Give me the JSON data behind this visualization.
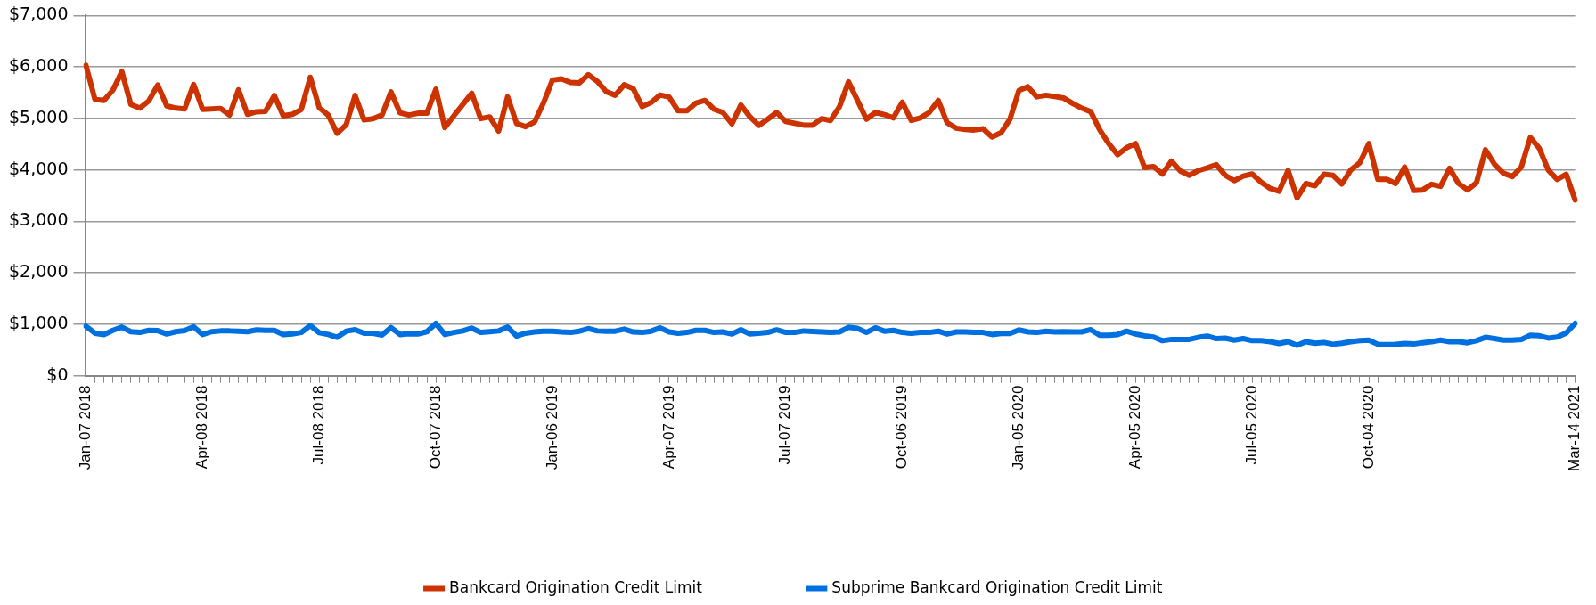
{
  "chart_data": {
    "type": "line",
    "categories": [
      "Jan-07 2018",
      null,
      null,
      null,
      null,
      null,
      null,
      null,
      null,
      null,
      null,
      null,
      null,
      "Apr-08 2018",
      null,
      null,
      null,
      null,
      null,
      null,
      null,
      null,
      null,
      null,
      null,
      null,
      "Jul-08 2018",
      null,
      null,
      null,
      null,
      null,
      null,
      null,
      null,
      null,
      null,
      null,
      null,
      "Oct-07 2018",
      null,
      null,
      null,
      null,
      null,
      null,
      null,
      null,
      null,
      null,
      null,
      null,
      "Jan-06 2019",
      null,
      null,
      null,
      null,
      null,
      null,
      null,
      null,
      null,
      null,
      null,
      null,
      "Apr-07 2019",
      null,
      null,
      null,
      null,
      null,
      null,
      null,
      null,
      null,
      null,
      null,
      null,
      "Jul-07 2019",
      null,
      null,
      null,
      null,
      null,
      null,
      null,
      null,
      null,
      null,
      null,
      null,
      "Oct-06 2019",
      null,
      null,
      null,
      null,
      null,
      null,
      null,
      null,
      null,
      null,
      null,
      null,
      "Jan-05 2020",
      null,
      null,
      null,
      null,
      null,
      null,
      null,
      null,
      null,
      null,
      null,
      null,
      "Apr-05 2020",
      null,
      null,
      null,
      null,
      null,
      null,
      null,
      null,
      null,
      null,
      null,
      null,
      "Jul-05 2020",
      null,
      null,
      null,
      null,
      null,
      null,
      null,
      null,
      null,
      null,
      null,
      null,
      "Oct-04 2020",
      null,
      null,
      null,
      null,
      null,
      null,
      null,
      null,
      null,
      null,
      null,
      null,
      null,
      null,
      null,
      null,
      null,
      null,
      null,
      null,
      null,
      null,
      "Mar-14 2021"
    ],
    "series": [
      {
        "name": "Bankcard Origination Credit Limit",
        "color": "#cc3300",
        "values": [
          6030,
          5370,
          5350,
          5550,
          5910,
          5270,
          5200,
          5340,
          5650,
          5245,
          5200,
          5185,
          5660,
          5175,
          5185,
          5195,
          5065,
          5555,
          5080,
          5130,
          5135,
          5445,
          5050,
          5080,
          5175,
          5800,
          5210,
          5065,
          4710,
          4875,
          5445,
          4970,
          4995,
          5065,
          5515,
          5110,
          5065,
          5100,
          5100,
          5570,
          4820,
          5050,
          5270,
          5490,
          4995,
          5030,
          4755,
          5420,
          4900,
          4840,
          4930,
          5300,
          5745,
          5770,
          5700,
          5690,
          5850,
          5720,
          5520,
          5450,
          5655,
          5580,
          5230,
          5310,
          5455,
          5415,
          5150,
          5150,
          5300,
          5350,
          5180,
          5115,
          4895,
          5260,
          5035,
          4865,
          4985,
          5115,
          4940,
          4905,
          4870,
          4870,
          4995,
          4960,
          5230,
          5710,
          5350,
          4985,
          5115,
          5075,
          5010,
          5315,
          4960,
          5010,
          5115,
          5350,
          4915,
          4810,
          4785,
          4775,
          4800,
          4640,
          4720,
          4985,
          5545,
          5615,
          5420,
          5450,
          5425,
          5395,
          5290,
          5200,
          5130,
          4780,
          4510,
          4295,
          4430,
          4510,
          4045,
          4065,
          3920,
          4170,
          3975,
          3895,
          3985,
          4040,
          4100,
          3895,
          3790,
          3880,
          3920,
          3760,
          3640,
          3585,
          3990,
          3455,
          3735,
          3690,
          3915,
          3895,
          3725,
          4000,
          4140,
          4510,
          3815,
          3815,
          3735,
          4055,
          3600,
          3610,
          3720,
          3680,
          4030,
          3735,
          3610,
          3750,
          4390,
          4110,
          3935,
          3870,
          4055,
          4630,
          4420,
          3995,
          3815,
          3915,
          3415
        ]
      },
      {
        "name": "Subprime Bankcard Origination Credit Limit",
        "color": "#0070e0",
        "values": [
          960,
          825,
          800,
          880,
          945,
          855,
          840,
          880,
          875,
          810,
          855,
          875,
          950,
          800,
          855,
          870,
          870,
          865,
          855,
          890,
          880,
          880,
          800,
          810,
          840,
          975,
          835,
          800,
          745,
          865,
          895,
          825,
          825,
          790,
          935,
          800,
          815,
          810,
          855,
          1015,
          800,
          840,
          870,
          925,
          840,
          855,
          870,
          945,
          770,
          825,
          850,
          865,
          865,
          850,
          840,
          865,
          915,
          870,
          865,
          865,
          905,
          850,
          840,
          865,
          930,
          850,
          825,
          840,
          880,
          880,
          840,
          850,
          810,
          895,
          810,
          825,
          840,
          890,
          840,
          840,
          870,
          860,
          850,
          840,
          850,
          940,
          920,
          840,
          930,
          865,
          880,
          840,
          825,
          840,
          840,
          865,
          810,
          850,
          850,
          840,
          840,
          800,
          820,
          820,
          890,
          850,
          840,
          865,
          850,
          855,
          850,
          850,
          895,
          785,
          785,
          800,
          865,
          810,
          775,
          750,
          680,
          705,
          705,
          705,
          745,
          770,
          720,
          730,
          690,
          720,
          680,
          680,
          660,
          625,
          660,
          590,
          660,
          630,
          645,
          610,
          630,
          660,
          680,
          690,
          610,
          605,
          610,
          625,
          615,
          640,
          660,
          690,
          660,
          660,
          640,
          680,
          745,
          720,
          690,
          690,
          705,
          785,
          775,
          730,
          750,
          830,
          1015
        ]
      }
    ],
    "ylim": [
      0,
      7000
    ],
    "yticks": [
      {
        "value": 0,
        "label": "$0"
      },
      {
        "value": 1000,
        "label": "$1,000"
      },
      {
        "value": 2000,
        "label": "$2,000"
      },
      {
        "value": 3000,
        "label": "$3,000"
      },
      {
        "value": 4000,
        "label": "$4,000"
      },
      {
        "value": 5000,
        "label": "$5,000"
      },
      {
        "value": 6000,
        "label": "$6,000"
      },
      {
        "value": 7000,
        "label": "$7,000"
      }
    ],
    "grid": "y",
    "legend": "bottom",
    "marker": "none",
    "line_style": "solid"
  }
}
